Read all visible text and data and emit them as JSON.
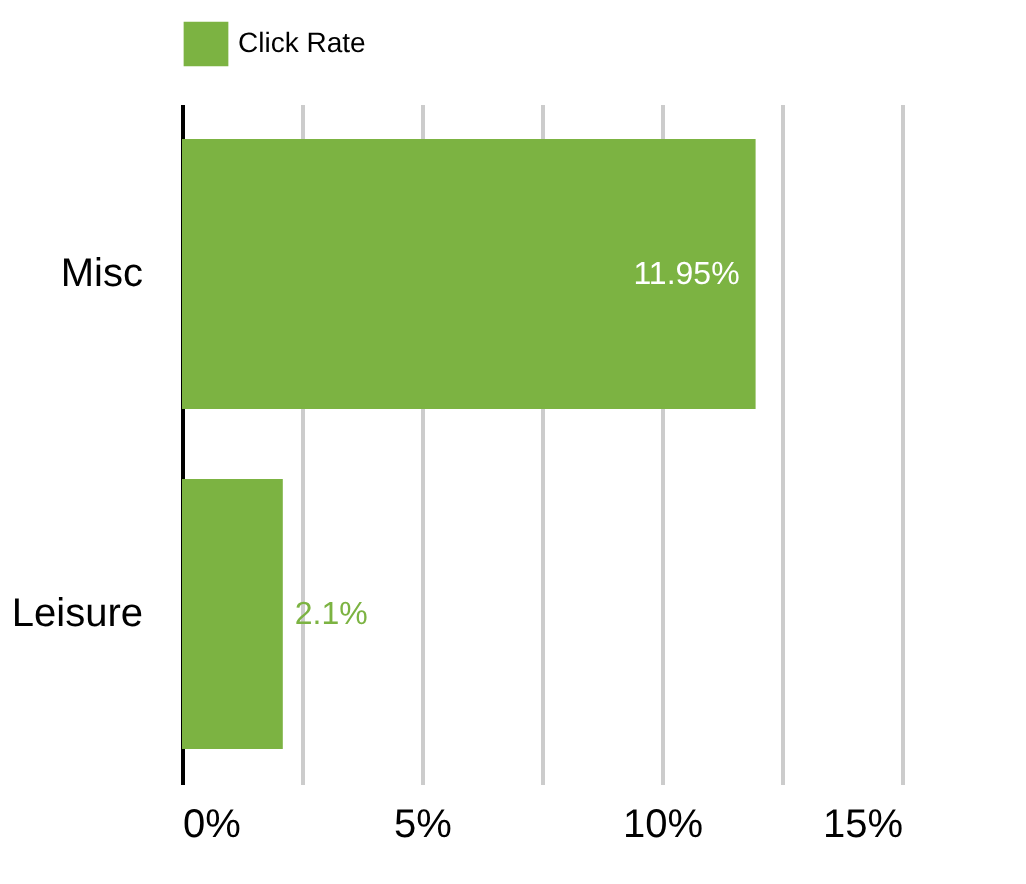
{
  "chart_data": {
    "type": "bar",
    "orientation": "horizontal",
    "categories": [
      "Misc",
      "Leisure"
    ],
    "series": [
      {
        "name": "Click Rate",
        "color": "#7cb342",
        "values": [
          11.95,
          2.1
        ],
        "value_labels": [
          "11.95%",
          "2.1%"
        ]
      }
    ],
    "xlim": [
      0,
      15
    ],
    "xticks": [
      {
        "value": 0,
        "label": "0%"
      },
      {
        "value": 2.5,
        "label": null
      },
      {
        "value": 5,
        "label": "5%"
      },
      {
        "value": 7.5,
        "label": null
      },
      {
        "value": 10,
        "label": "10%"
      },
      {
        "value": 12.5,
        "label": null
      },
      {
        "value": 15,
        "label": "15%"
      }
    ],
    "grid": "x",
    "legend": "top left"
  }
}
